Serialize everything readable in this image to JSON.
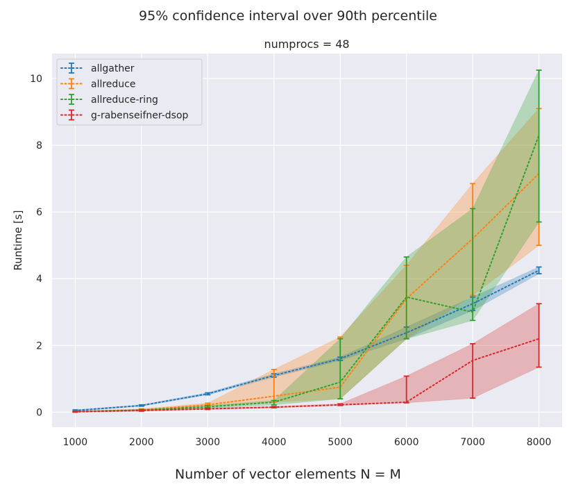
{
  "figure": {
    "suptitle": "95% confidence interval over 90th percentile",
    "subplot_title": "numprocs = 48"
  },
  "chart_data": {
    "type": "line",
    "title": "numprocs = 48",
    "xlabel": "Number of vector elements N = M",
    "ylabel": "Runtime [s]",
    "x": [
      1000,
      2000,
      3000,
      4000,
      5000,
      6000,
      7000,
      8000
    ],
    "xlim": [
      650,
      8350
    ],
    "ylim": [
      -0.45,
      10.75
    ],
    "xticks": [
      1000,
      2000,
      3000,
      4000,
      5000,
      6000,
      7000,
      8000
    ],
    "yticks": [
      0,
      2,
      4,
      6,
      8,
      10
    ],
    "grid": true,
    "legend_position": "top-left",
    "background": "#eaeaf2",
    "series": [
      {
        "name": "allgather",
        "color": "#1f77b4",
        "values": [
          0.05,
          0.2,
          0.55,
          1.1,
          1.6,
          2.38,
          3.25,
          4.25
        ],
        "ci_low": [
          0.03,
          0.18,
          0.52,
          1.05,
          1.55,
          2.2,
          3.05,
          4.15
        ],
        "ci_high": [
          0.07,
          0.22,
          0.58,
          1.15,
          1.65,
          2.55,
          3.45,
          4.35
        ]
      },
      {
        "name": "allreduce",
        "color": "#ff7f0e",
        "values": [
          0.02,
          0.07,
          0.22,
          0.48,
          0.75,
          3.4,
          5.2,
          7.15
        ],
        "ci_low": [
          0.01,
          0.05,
          0.18,
          0.3,
          0.4,
          2.2,
          3.5,
          5.0
        ],
        "ci_high": [
          0.03,
          0.1,
          0.27,
          1.28,
          2.25,
          4.4,
          6.85,
          9.1
        ]
      },
      {
        "name": "allreduce-ring",
        "color": "#2ca02c",
        "values": [
          0.02,
          0.06,
          0.16,
          0.3,
          0.9,
          3.45,
          3.0,
          8.3
        ],
        "ci_low": [
          0.01,
          0.04,
          0.12,
          0.22,
          0.4,
          2.2,
          2.75,
          5.7
        ],
        "ci_high": [
          0.03,
          0.08,
          0.2,
          0.35,
          2.2,
          4.65,
          6.1,
          10.25
        ]
      },
      {
        "name": "g-rabenseifner-dsop",
        "color": "#d62728",
        "values": [
          0.01,
          0.05,
          0.1,
          0.15,
          0.22,
          0.3,
          1.55,
          2.2
        ],
        "ci_low": [
          0.0,
          0.03,
          0.08,
          0.13,
          0.2,
          0.28,
          0.42,
          1.35
        ],
        "ci_high": [
          0.02,
          0.07,
          0.12,
          0.17,
          0.25,
          1.08,
          2.05,
          3.25
        ]
      }
    ]
  }
}
